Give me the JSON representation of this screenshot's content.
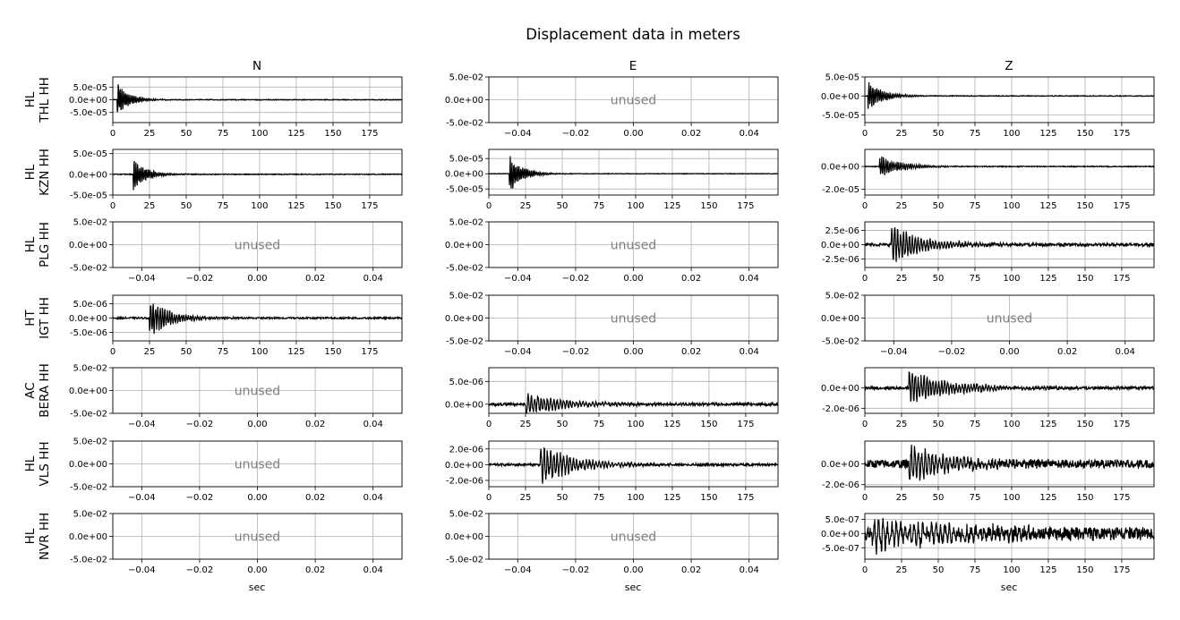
{
  "chart_data": {
    "type": "line",
    "title": "Displacement data in meters",
    "columns": [
      "N",
      "E",
      "Z"
    ],
    "xlabel": "sec",
    "unused_label": "unused",
    "grid": true,
    "line_color": "#000000",
    "unused_color": "#808080",
    "rows": [
      {
        "label": "HL\nTHL HH",
        "panels": [
          {
            "used": true,
            "xlim": [
              0,
              197
            ],
            "xticks": [
              0,
              25,
              50,
              75,
              100,
              125,
              150,
              175
            ],
            "ylim": [
              -9e-05,
              9e-05
            ],
            "yticks": [
              -5e-05,
              0,
              5e-05
            ],
            "yticklabels": [
              "-5.0e-05",
              "0.0e+00",
              "5.0e-05"
            ],
            "wave": {
              "onset": 3,
              "peak": 7.5e-05,
              "decay": 8,
              "baseline": 0,
              "noise": 1.5e-06,
              "period": 1.2
            }
          },
          {
            "used": false,
            "xlim": [
              -0.05,
              0.05
            ],
            "xticks": [
              -0.04,
              -0.02,
              0,
              0.02,
              0.04
            ],
            "xticklabels": [
              "−0.04",
              "−0.02",
              "0.00",
              "0.02",
              "0.04"
            ],
            "ylim": [
              -0.05,
              0.05
            ],
            "yticks": [
              -0.05,
              0,
              0.05
            ],
            "yticklabels": [
              "-5.0e-02",
              "0.0e+00",
              "5.0e-02"
            ]
          },
          {
            "used": true,
            "xlim": [
              0,
              197
            ],
            "xticks": [
              0,
              25,
              50,
              75,
              100,
              125,
              150,
              175
            ],
            "ylim": [
              -7e-05,
              5e-05
            ],
            "yticks": [
              -5e-05,
              0,
              5e-05
            ],
            "yticklabels": [
              "-5.0e-05",
              "0.0e+00",
              "5.0e-05"
            ],
            "wave": {
              "onset": 2,
              "peak": 4.5e-05,
              "decay": 10,
              "baseline": 0,
              "noise": 1e-06,
              "period": 1.3
            }
          }
        ]
      },
      {
        "label": "HL\nKZN HH",
        "panels": [
          {
            "used": true,
            "xlim": [
              0,
              197
            ],
            "xticks": [
              0,
              25,
              50,
              75,
              100,
              125,
              150,
              175
            ],
            "ylim": [
              -5e-05,
              6e-05
            ],
            "yticks": [
              -5e-05,
              0,
              5e-05
            ],
            "yticklabels": [
              "-5.0e-05",
              "0.0e+00",
              "5.0e-05"
            ],
            "wave": {
              "onset": 14,
              "peak": 4.5e-05,
              "decay": 9,
              "baseline": 0,
              "noise": 1e-06,
              "period": 1.2
            }
          },
          {
            "used": true,
            "xlim": [
              0,
              197
            ],
            "xticks": [
              0,
              25,
              50,
              75,
              100,
              125,
              150,
              175
            ],
            "ylim": [
              -7e-05,
              8e-05
            ],
            "yticks": [
              -5e-05,
              0,
              5e-05
            ],
            "yticklabels": [
              "-5.0e-05",
              "0.0e+00",
              "5.0e-05"
            ],
            "wave": {
              "onset": 14,
              "peak": 6.5e-05,
              "decay": 9,
              "baseline": 0,
              "noise": 1e-06,
              "period": 1.2
            }
          },
          {
            "used": true,
            "xlim": [
              0,
              197
            ],
            "xticks": [
              0,
              25,
              50,
              75,
              100,
              125,
              150,
              175
            ],
            "ylim": [
              -2.5e-05,
              1.5e-05
            ],
            "yticks": [
              -2e-05,
              0
            ],
            "yticklabels": [
              "-2.0e-05",
              "0.0e+00"
            ],
            "wave": {
              "onset": 10,
              "peak": 1e-05,
              "decay": 15,
              "baseline": 0,
              "noise": 4e-07,
              "period": 1.4
            }
          }
        ]
      },
      {
        "label": "HL\nPLG HH",
        "panels": [
          {
            "used": false,
            "xlim": [
              -0.05,
              0.05
            ],
            "xticks": [
              -0.04,
              -0.02,
              0,
              0.02,
              0.04
            ],
            "xticklabels": [
              "−0.04",
              "−0.02",
              "0.00",
              "0.02",
              "0.04"
            ],
            "ylim": [
              -0.05,
              0.05
            ],
            "yticks": [
              -0.05,
              0,
              0.05
            ],
            "yticklabels": [
              "-5.0e-02",
              "0.0e+00",
              "5.0e-02"
            ]
          },
          {
            "used": false,
            "xlim": [
              -0.05,
              0.05
            ],
            "xticks": [
              -0.04,
              -0.02,
              0,
              0.02,
              0.04
            ],
            "xticklabels": [
              "−0.04",
              "−0.02",
              "0.00",
              "0.02",
              "0.04"
            ],
            "ylim": [
              -0.05,
              0.05
            ],
            "yticks": [
              -0.05,
              0,
              0.05
            ],
            "yticklabels": [
              "-5.0e-02",
              "0.0e+00",
              "5.0e-02"
            ]
          },
          {
            "used": true,
            "xlim": [
              0,
              197
            ],
            "xticks": [
              0,
              25,
              50,
              75,
              100,
              125,
              150,
              175
            ],
            "ylim": [
              -4e-06,
              4e-06
            ],
            "yticks": [
              -2.5e-06,
              0,
              2.5e-06
            ],
            "yticklabels": [
              "-2.5e-06",
              "0.0e+00",
              "2.5e-06"
            ],
            "wave": {
              "onset": 18,
              "peak": 3.5e-06,
              "decay": 22,
              "baseline": 0,
              "noise": 2.5e-07,
              "period": 2.0
            }
          }
        ]
      },
      {
        "label": "HT\nIGT HH",
        "panels": [
          {
            "used": true,
            "xlim": [
              0,
              197
            ],
            "xticks": [
              0,
              25,
              50,
              75,
              100,
              125,
              150,
              175
            ],
            "ylim": [
              -8e-06,
              8e-06
            ],
            "yticks": [
              -5e-06,
              0,
              5e-06
            ],
            "yticklabels": [
              "-5.0e-06",
              "0.0e+00",
              "5.0e-06"
            ],
            "wave": {
              "onset": 25,
              "peak": 7e-06,
              "decay": 15,
              "baseline": 0,
              "noise": 3e-07,
              "period": 1.6
            }
          },
          {
            "used": false,
            "xlim": [
              -0.05,
              0.05
            ],
            "xticks": [
              -0.04,
              -0.02,
              0,
              0.02,
              0.04
            ],
            "xticklabels": [
              "−0.04",
              "−0.02",
              "0.00",
              "0.02",
              "0.04"
            ],
            "ylim": [
              -0.05,
              0.05
            ],
            "yticks": [
              -0.05,
              0,
              0.05
            ],
            "yticklabels": [
              "-5.0e-02",
              "0.0e+00",
              "5.0e-02"
            ]
          },
          {
            "used": false,
            "xlim": [
              -0.05,
              0.05
            ],
            "xticks": [
              -0.04,
              -0.02,
              0,
              0.02,
              0.04
            ],
            "xticklabels": [
              "−0.04",
              "−0.02",
              "0.00",
              "0.02",
              "0.04"
            ],
            "ylim": [
              -0.05,
              0.05
            ],
            "yticks": [
              -0.05,
              0,
              0.05
            ],
            "yticklabels": [
              "-5.0e-02",
              "0.0e+00",
              "5.0e-02"
            ]
          }
        ]
      },
      {
        "label": "AC\nBERA HH",
        "panels": [
          {
            "used": false,
            "xlim": [
              -0.05,
              0.05
            ],
            "xticks": [
              -0.04,
              -0.02,
              0,
              0.02,
              0.04
            ],
            "xticklabels": [
              "−0.04",
              "−0.02",
              "0.00",
              "0.02",
              "0.04"
            ],
            "ylim": [
              -0.05,
              0.05
            ],
            "yticks": [
              -0.05,
              0,
              0.05
            ],
            "yticklabels": [
              "-5.0e-02",
              "0.0e+00",
              "5.0e-02"
            ]
          },
          {
            "used": true,
            "xlim": [
              0,
              197
            ],
            "xticks": [
              0,
              25,
              50,
              75,
              100,
              125,
              150,
              175
            ],
            "ylim": [
              -2e-06,
              8e-06
            ],
            "yticks": [
              0,
              5e-06
            ],
            "yticklabels": [
              "0.0e+00",
              "5.0e-06"
            ],
            "wave": {
              "onset": 25,
              "peak": 2.5e-06,
              "decay": 30,
              "baseline": 0,
              "noise": 3e-07,
              "period": 2.2
            }
          },
          {
            "used": true,
            "xlim": [
              0,
              197
            ],
            "xticks": [
              0,
              25,
              50,
              75,
              100,
              125,
              150,
              175
            ],
            "ylim": [
              -2.5e-06,
              2e-06
            ],
            "yticks": [
              -2e-06,
              0
            ],
            "yticklabels": [
              "-2.0e-06",
              "0.0e+00"
            ],
            "wave": {
              "onset": 30,
              "peak": 1.8e-06,
              "decay": 28,
              "baseline": 0,
              "noise": 1.5e-07,
              "period": 2.0
            }
          }
        ]
      },
      {
        "label": "HL\nVLS HH",
        "panels": [
          {
            "used": false,
            "xlim": [
              -0.05,
              0.05
            ],
            "xticks": [
              -0.04,
              -0.02,
              0,
              0.02,
              0.04
            ],
            "xticklabels": [
              "−0.04",
              "−0.02",
              "0.00",
              "0.02",
              "0.04"
            ],
            "ylim": [
              -0.05,
              0.05
            ],
            "yticks": [
              -0.05,
              0,
              0.05
            ],
            "yticklabels": [
              "-5.0e-02",
              "0.0e+00",
              "5.0e-02"
            ]
          },
          {
            "used": true,
            "xlim": [
              0,
              197
            ],
            "xticks": [
              0,
              25,
              50,
              75,
              100,
              125,
              150,
              175
            ],
            "ylim": [
              -2.8e-06,
              3e-06
            ],
            "yticks": [
              -2e-06,
              0,
              2e-06
            ],
            "yticklabels": [
              "-2.0e-06",
              "0.0e+00",
              "2.0e-06"
            ],
            "wave": {
              "onset": 35,
              "peak": 2.6e-06,
              "decay": 25,
              "baseline": 0,
              "noise": 1.5e-07,
              "period": 2.2
            }
          },
          {
            "used": true,
            "xlim": [
              0,
              197
            ],
            "xticks": [
              0,
              25,
              50,
              75,
              100,
              125,
              150,
              175
            ],
            "ylim": [
              -2.2e-06,
              2.2e-06
            ],
            "yticks": [
              -2e-06,
              0
            ],
            "yticklabels": [
              "-2.0e-06",
              "0.0e+00"
            ],
            "wave": {
              "onset": 30,
              "peak": 1.9e-06,
              "decay": 30,
              "baseline": 0,
              "noise": 4e-07,
              "period": 2.4
            }
          }
        ]
      },
      {
        "label": "HL\nNVR HH",
        "panels": [
          {
            "used": false,
            "xlim": [
              -0.05,
              0.05
            ],
            "xticks": [
              -0.04,
              -0.02,
              0,
              0.02,
              0.04
            ],
            "xticklabels": [
              "−0.04",
              "−0.02",
              "0.00",
              "0.02",
              "0.04"
            ],
            "ylim": [
              -0.05,
              0.05
            ],
            "yticks": [
              -0.05,
              0,
              0.05
            ],
            "yticklabels": [
              "-5.0e-02",
              "0.0e+00",
              "5.0e-02"
            ]
          },
          {
            "used": false,
            "xlim": [
              -0.05,
              0.05
            ],
            "xticks": [
              -0.04,
              -0.02,
              0,
              0.02,
              0.04
            ],
            "xticklabels": [
              "−0.04",
              "−0.02",
              "0.00",
              "0.02",
              "0.04"
            ],
            "ylim": [
              -0.05,
              0.05
            ],
            "yticks": [
              -0.05,
              0,
              0.05
            ],
            "yticklabels": [
              "-5.0e-02",
              "0.0e+00",
              "5.0e-02"
            ]
          },
          {
            "used": true,
            "xlim": [
              0,
              197
            ],
            "xticks": [
              0,
              25,
              50,
              75,
              100,
              125,
              150,
              175
            ],
            "ylim": [
              -9e-07,
              7e-07
            ],
            "yticks": [
              -5e-07,
              0,
              5e-07
            ],
            "yticklabels": [
              "-5.0e-07",
              "0.0e+00",
              "5.0e-07"
            ],
            "wave": {
              "onset": 5,
              "peak": 6e-07,
              "decay": 60,
              "baseline": 0,
              "noise": 2.2e-07,
              "period": 3.0
            }
          }
        ]
      }
    ]
  }
}
